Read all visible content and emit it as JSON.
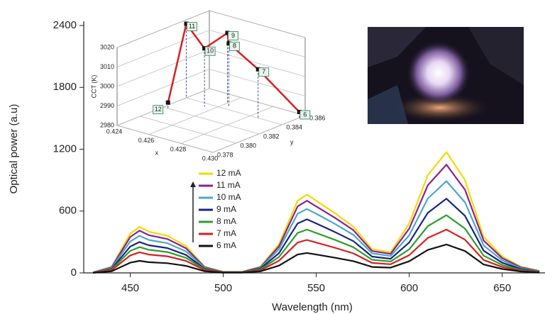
{
  "chart_data": [
    {
      "type": "line",
      "x_label": "Wavelength (nm)",
      "y_label": "Optical power (a.u)",
      "x": [
        430,
        440,
        450,
        455,
        460,
        470,
        480,
        490,
        500,
        510,
        520,
        530,
        540,
        545,
        550,
        560,
        570,
        580,
        590,
        600,
        610,
        620,
        630,
        640,
        650,
        660,
        670
      ],
      "xlim": [
        425,
        673
      ],
      "xticks": [
        450,
        500,
        550,
        600,
        650
      ],
      "ylim": [
        0,
        2400
      ],
      "yticks": [
        0,
        600,
        1200,
        1800,
        2400
      ],
      "grid": false,
      "series": [
        {
          "name": "12 mA",
          "color": "#f0dc00",
          "values": [
            5,
            60,
            380,
            448,
            400,
            360,
            260,
            60,
            10,
            10,
            60,
            280,
            700,
            759,
            700,
            580,
            450,
            230,
            200,
            480,
            950,
            1172,
            900,
            350,
            160,
            60,
            20
          ]
        },
        {
          "name": "11 mA",
          "color": "#8e1f8e",
          "values": [
            5,
            55,
            348,
            410,
            366,
            329,
            238,
            55,
            9,
            9,
            55,
            258,
            645,
            700,
            645,
            535,
            415,
            212,
            184,
            430,
            851,
            1050,
            806,
            314,
            143,
            54,
            18
          ]
        },
        {
          "name": "10 mA",
          "color": "#4aa8c8",
          "values": [
            4,
            48,
            304,
            360,
            320,
            288,
            208,
            48,
            8,
            8,
            49,
            230,
            574,
            620,
            574,
            476,
            369,
            189,
            164,
            365,
            722,
            890,
            684,
            266,
            122,
            46,
            15
          ]
        },
        {
          "name": "9 mA",
          "color": "#1a237e",
          "values": [
            3,
            40,
            255,
            300,
            268,
            241,
            174,
            40,
            7,
            7,
            41,
            192,
            480,
            520,
            480,
            397,
            308,
            158,
            137,
            295,
            583,
            720,
            553,
            215,
            98,
            37,
            12
          ]
        },
        {
          "name": "8 mA",
          "color": "#2e9e2e",
          "values": [
            3,
            34,
            213,
            250,
            224,
            202,
            146,
            34,
            6,
            6,
            33,
            155,
            387,
            420,
            387,
            321,
            249,
            127,
            111,
            229,
            454,
            560,
            430,
            167,
            76,
            29,
            10
          ]
        },
        {
          "name": "7 mA",
          "color": "#d62020",
          "values": [
            2,
            27,
            169,
            200,
            178,
            161,
            116,
            27,
            4,
            4,
            25,
            118,
            294,
            320,
            294,
            244,
            189,
            97,
            84,
            172,
            340,
            420,
            322,
            125,
            57,
            21,
            7
          ]
        },
        {
          "name": "6 mA",
          "color": "#111111",
          "values": [
            1,
            16,
            99,
            117,
            104,
            94,
            68,
            16,
            3,
            3,
            15,
            71,
            178,
            193,
            178,
            147,
            114,
            58,
            51,
            113,
            223,
            276,
            212,
            82,
            38,
            14,
            5
          ]
        }
      ]
    },
    {
      "type": "scatter3d",
      "x_label": "x",
      "y_label": "y",
      "z_label": "CCT (K)",
      "xlim": [
        0.424,
        0.43
      ],
      "xticks": [
        0.424,
        0.426,
        0.428,
        {
          "value": 0.43,
          "label": "0.430"
        }
      ],
      "ylim": [
        0.378,
        0.386
      ],
      "yticks": [
        0.378,
        {
          "value": 0.38,
          "label": "0.380"
        },
        0.382,
        0.384,
        0.386
      ],
      "zlim": [
        2980,
        3020
      ],
      "zticks": [
        2980,
        2990,
        3000,
        3010,
        3020
      ],
      "color": "#d62020",
      "labels": [
        "12",
        "11",
        "10",
        "9",
        "8",
        "7",
        "6"
      ],
      "x": [
        0.4243,
        0.424,
        0.4255,
        0.426,
        0.4263,
        0.4285,
        0.43
      ],
      "y": [
        0.382,
        0.384,
        0.3835,
        0.3848,
        0.3845,
        0.384,
        0.3855
      ],
      "z": [
        2983,
        3018,
        3010,
        3016,
        3012,
        3005,
        2983
      ]
    }
  ]
}
